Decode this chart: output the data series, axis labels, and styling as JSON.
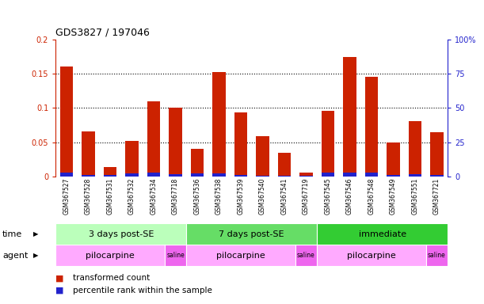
{
  "title": "GDS3827 / 197046",
  "samples": [
    "GSM367527",
    "GSM367528",
    "GSM367531",
    "GSM367532",
    "GSM367534",
    "GSM367718",
    "GSM367536",
    "GSM367538",
    "GSM367539",
    "GSM367540",
    "GSM367541",
    "GSM367719",
    "GSM367545",
    "GSM367546",
    "GSM367548",
    "GSM367549",
    "GSM367551",
    "GSM367721"
  ],
  "red_values": [
    0.161,
    0.066,
    0.013,
    0.052,
    0.11,
    0.1,
    0.04,
    0.152,
    0.093,
    0.059,
    0.034,
    0.006,
    0.096,
    0.175,
    0.146,
    0.05,
    0.081,
    0.065
  ],
  "blue_values": [
    0.006,
    0.002,
    0.002,
    0.004,
    0.005,
    0.003,
    0.004,
    0.004,
    0.002,
    0.001,
    0.001,
    0.001,
    0.005,
    0.005,
    0.005,
    0.002,
    0.003,
    0.002
  ],
  "ylim_left": [
    0.0,
    0.2
  ],
  "ylim_right": [
    0,
    100
  ],
  "yticks_left": [
    0,
    0.05,
    0.1,
    0.15,
    0.2
  ],
  "yticks_right": [
    0,
    25,
    50,
    75,
    100
  ],
  "ytick_labels_left": [
    "0",
    "0.05",
    "0.1",
    "0.15",
    "0.2"
  ],
  "ytick_labels_right": [
    "0",
    "25",
    "50",
    "75",
    "100%"
  ],
  "time_groups": [
    {
      "label": "3 days post-SE",
      "start": 0,
      "end": 5
    },
    {
      "label": "7 days post-SE",
      "start": 6,
      "end": 11
    },
    {
      "label": "immediate",
      "start": 12,
      "end": 17
    }
  ],
  "time_colors": [
    "#bbffbb",
    "#66dd66",
    "#33cc33"
  ],
  "agent_groups": [
    {
      "label": "pilocarpine",
      "start": 0,
      "end": 4
    },
    {
      "label": "saline",
      "start": 5,
      "end": 5
    },
    {
      "label": "pilocarpine",
      "start": 6,
      "end": 10
    },
    {
      "label": "saline",
      "start": 11,
      "end": 11
    },
    {
      "label": "pilocarpine",
      "start": 12,
      "end": 16
    },
    {
      "label": "saline",
      "start": 17,
      "end": 17
    }
  ],
  "agent_color_pilo": "#ffaaff",
  "agent_color_saline": "#ee66ee",
  "bar_width": 0.6,
  "red_color": "#cc2200",
  "blue_color": "#2222cc",
  "left_axis_color": "#cc2200",
  "right_axis_color": "#2222cc",
  "bg_color": "#ffffff",
  "legend_items": [
    "transformed count",
    "percentile rank within the sample"
  ]
}
